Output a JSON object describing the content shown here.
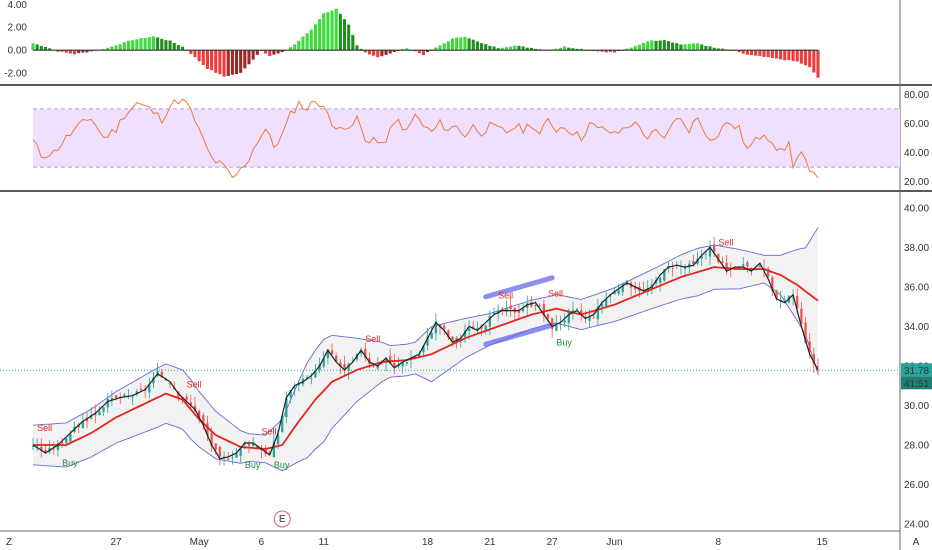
{
  "chart_data": [
    {
      "id": "macd-histogram",
      "type": "bar",
      "y_ticks": [
        "4.00",
        "2.00",
        "0.00",
        "-2.00"
      ],
      "ylim": [
        -2.6,
        4.2
      ],
      "colors": {
        "pos_strong": "#3ddc3d",
        "pos_weak": "#1f8f1f",
        "neg_strong": "#f03c3c",
        "neg_weak": "#9c2a2a",
        "zero_line": "#333333"
      },
      "knots": [
        [
          0,
          0.6
        ],
        [
          3,
          0.3
        ],
        [
          6,
          -0.1
        ],
        [
          10,
          -0.35
        ],
        [
          14,
          -0.1
        ],
        [
          18,
          0.2
        ],
        [
          24,
          0.9
        ],
        [
          29,
          1.2
        ],
        [
          33,
          0.8
        ],
        [
          36,
          0.3
        ],
        [
          38,
          -0.3
        ],
        [
          42,
          -1.6
        ],
        [
          46,
          -2.3
        ],
        [
          50,
          -2.0
        ],
        [
          53,
          -0.8
        ],
        [
          55,
          0.0
        ],
        [
          57,
          -0.5
        ],
        [
          60,
          -0.2
        ],
        [
          63,
          0.5
        ],
        [
          67,
          1.8
        ],
        [
          70,
          3.2
        ],
        [
          73,
          3.6
        ],
        [
          76,
          2.2
        ],
        [
          78,
          0.4
        ],
        [
          80,
          -0.2
        ],
        [
          83,
          -0.6
        ],
        [
          86,
          -0.3
        ],
        [
          90,
          0.2
        ],
        [
          94,
          -0.4
        ],
        [
          98,
          0.4
        ],
        [
          101,
          1.0
        ],
        [
          104,
          1.2
        ],
        [
          108,
          0.6
        ],
        [
          112,
          0.2
        ],
        [
          116,
          0.4
        ],
        [
          120,
          0.2
        ],
        [
          124,
          0.0
        ],
        [
          128,
          0.3
        ],
        [
          132,
          0.1
        ],
        [
          136,
          -0.1
        ],
        [
          140,
          -0.2
        ],
        [
          144,
          0.2
        ],
        [
          148,
          0.8
        ],
        [
          152,
          0.9
        ],
        [
          156,
          0.5
        ],
        [
          160,
          0.6
        ],
        [
          164,
          0.2
        ],
        [
          168,
          0.0
        ],
        [
          172,
          -0.4
        ],
        [
          176,
          -0.6
        ],
        [
          180,
          -0.8
        ],
        [
          184,
          -1.0
        ],
        [
          187,
          -1.5
        ],
        [
          189,
          -2.4
        ]
      ]
    },
    {
      "id": "rsi",
      "type": "line",
      "y_ticks": [
        "80.00",
        "60.00",
        "40.00",
        "20.00"
      ],
      "ylim": [
        17,
        83
      ],
      "band": [
        30,
        70
      ],
      "colors": {
        "line": "#f07a3a",
        "band_fill": "#efe0ff",
        "band_border": "#b89ad8"
      },
      "knots": [
        [
          0,
          48
        ],
        [
          2,
          38
        ],
        [
          5,
          40
        ],
        [
          8,
          50
        ],
        [
          11,
          58
        ],
        [
          14,
          64
        ],
        [
          17,
          50
        ],
        [
          20,
          56
        ],
        [
          22,
          66
        ],
        [
          25,
          74
        ],
        [
          28,
          70
        ],
        [
          31,
          63
        ],
        [
          33,
          72
        ],
        [
          35,
          76
        ],
        [
          37,
          74
        ],
        [
          39,
          62
        ],
        [
          41,
          48
        ],
        [
          43,
          36
        ],
        [
          46,
          30
        ],
        [
          48,
          22
        ],
        [
          50,
          28
        ],
        [
          52,
          36
        ],
        [
          54,
          48
        ],
        [
          56,
          56
        ],
        [
          58,
          44
        ],
        [
          60,
          52
        ],
        [
          62,
          66
        ],
        [
          64,
          74
        ],
        [
          66,
          70
        ],
        [
          68,
          76
        ],
        [
          70,
          72
        ],
        [
          72,
          58
        ],
        [
          74,
          60
        ],
        [
          76,
          54
        ],
        [
          78,
          64
        ],
        [
          80,
          48
        ],
        [
          82,
          50
        ],
        [
          84,
          44
        ],
        [
          86,
          55
        ],
        [
          88,
          62
        ],
        [
          90,
          54
        ],
        [
          92,
          66
        ],
        [
          94,
          58
        ],
        [
          96,
          54
        ],
        [
          98,
          60
        ],
        [
          100,
          56
        ],
        [
          102,
          58
        ],
        [
          104,
          52
        ],
        [
          106,
          58
        ],
        [
          108,
          54
        ],
        [
          110,
          58
        ],
        [
          112,
          56
        ],
        [
          114,
          54
        ],
        [
          116,
          58
        ],
        [
          118,
          56
        ],
        [
          120,
          60
        ],
        [
          122,
          52
        ],
        [
          124,
          62
        ],
        [
          126,
          56
        ],
        [
          128,
          58
        ],
        [
          130,
          54
        ],
        [
          132,
          50
        ],
        [
          134,
          60
        ],
        [
          136,
          56
        ],
        [
          138,
          56
        ],
        [
          140,
          52
        ],
        [
          142,
          56
        ],
        [
          144,
          60
        ],
        [
          146,
          58
        ],
        [
          148,
          50
        ],
        [
          150,
          54
        ],
        [
          152,
          48
        ],
        [
          154,
          62
        ],
        [
          156,
          62
        ],
        [
          158,
          56
        ],
        [
          160,
          64
        ],
        [
          162,
          54
        ],
        [
          164,
          48
        ],
        [
          166,
          58
        ],
        [
          168,
          60
        ],
        [
          170,
          56
        ],
        [
          172,
          42
        ],
        [
          174,
          48
        ],
        [
          176,
          54
        ],
        [
          178,
          48
        ],
        [
          180,
          40
        ],
        [
          182,
          46
        ],
        [
          183,
          32
        ],
        [
          185,
          40
        ],
        [
          187,
          26
        ],
        [
          189,
          21
        ]
      ]
    },
    {
      "id": "price",
      "type": "candlestick",
      "title": "",
      "y_ticks": [
        "40.00",
        "38.00",
        "36.00",
        "34.00",
        "32.00",
        "30.00",
        "28.00",
        "26.00",
        "24.00"
      ],
      "ylim": [
        23.8,
        40.6
      ],
      "x_ticks": [
        {
          "i": 20,
          "label": "27"
        },
        {
          "i": 40,
          "label": "May"
        },
        {
          "i": 55,
          "label": "6"
        },
        {
          "i": 70,
          "label": "11"
        },
        {
          "i": 95,
          "label": "18"
        },
        {
          "i": 110,
          "label": "21"
        },
        {
          "i": 125,
          "label": "27"
        },
        {
          "i": 140,
          "label": "Jun"
        },
        {
          "i": 165,
          "label": "8"
        },
        {
          "i": 190,
          "label": "15"
        }
      ],
      "x_range": [
        -2,
        206
      ],
      "last_price_label": "31.78",
      "countdown_label": "41:51",
      "earnings_label": "E",
      "earnings_index": 60,
      "corner_left_label": "Z",
      "corner_right_label": "A",
      "colors": {
        "up": "#26a69a",
        "down": "#ef5350",
        "price_line": "#222222",
        "ma": "#e3261e",
        "band_line": "#6a6ad8",
        "band_fill": "#f2f2f2",
        "last_line": "#26a69a",
        "highlight": "#7a7aee",
        "buy": "#1e8f3a",
        "sell": "#e3261e"
      },
      "close_knots": [
        [
          0,
          28.0
        ],
        [
          3,
          27.6
        ],
        [
          6,
          28.0
        ],
        [
          9,
          28.6
        ],
        [
          12,
          29.2
        ],
        [
          15,
          29.6
        ],
        [
          18,
          30.2
        ],
        [
          21,
          30.4
        ],
        [
          24,
          30.5
        ],
        [
          27,
          30.8
        ],
        [
          30,
          31.6
        ],
        [
          33,
          31.2
        ],
        [
          35,
          30.6
        ],
        [
          37,
          30.2
        ],
        [
          39,
          29.8
        ],
        [
          41,
          29.0
        ],
        [
          43,
          28.0
        ],
        [
          45,
          27.3
        ],
        [
          47,
          27.4
        ],
        [
          49,
          27.6
        ],
        [
          51,
          28.1
        ],
        [
          53,
          28.1
        ],
        [
          55,
          27.8
        ],
        [
          57,
          27.5
        ],
        [
          59,
          28.6
        ],
        [
          61,
          30.4
        ],
        [
          63,
          31.0
        ],
        [
          65,
          31.2
        ],
        [
          67,
          31.5
        ],
        [
          69,
          32.0
        ],
        [
          71,
          32.8
        ],
        [
          73,
          32.2
        ],
        [
          75,
          31.8
        ],
        [
          77,
          32.2
        ],
        [
          79,
          32.8
        ],
        [
          81,
          32.2
        ],
        [
          83,
          32.0
        ],
        [
          85,
          32.4
        ],
        [
          87,
          31.9
        ],
        [
          89,
          32.2
        ],
        [
          91,
          32.4
        ],
        [
          93,
          32.6
        ],
        [
          95,
          33.4
        ],
        [
          97,
          34.2
        ],
        [
          99,
          33.8
        ],
        [
          101,
          33.2
        ],
        [
          103,
          33.4
        ],
        [
          105,
          34.0
        ],
        [
          107,
          33.8
        ],
        [
          109,
          34.2
        ],
        [
          111,
          34.6
        ],
        [
          113,
          34.8
        ],
        [
          115,
          34.8
        ],
        [
          117,
          34.8
        ],
        [
          119,
          35.1
        ],
        [
          121,
          35.2
        ],
        [
          123,
          34.6
        ],
        [
          125,
          34.0
        ],
        [
          127,
          34.2
        ],
        [
          129,
          34.6
        ],
        [
          131,
          34.8
        ],
        [
          133,
          34.4
        ],
        [
          135,
          34.6
        ],
        [
          137,
          35.2
        ],
        [
          139,
          35.6
        ],
        [
          141,
          35.9
        ],
        [
          143,
          36.2
        ],
        [
          145,
          36.0
        ],
        [
          147,
          35.8
        ],
        [
          149,
          36.0
        ],
        [
          151,
          36.6
        ],
        [
          153,
          37.0
        ],
        [
          155,
          37.1
        ],
        [
          157,
          37.0
        ],
        [
          159,
          37.1
        ],
        [
          161,
          37.6
        ],
        [
          163,
          38.0
        ],
        [
          165,
          37.4
        ],
        [
          167,
          36.8
        ],
        [
          169,
          37.0
        ],
        [
          171,
          37.0
        ],
        [
          173,
          36.8
        ],
        [
          175,
          37.2
        ],
        [
          177,
          36.4
        ],
        [
          179,
          35.4
        ],
        [
          181,
          35.2
        ],
        [
          183,
          35.6
        ],
        [
          185,
          34.0
        ],
        [
          187,
          32.6
        ],
        [
          189,
          31.8
        ]
      ],
      "ma_knots": [
        [
          0,
          28.0
        ],
        [
          8,
          28.0
        ],
        [
          14,
          28.6
        ],
        [
          20,
          29.4
        ],
        [
          26,
          30.0
        ],
        [
          32,
          30.6
        ],
        [
          36,
          30.3
        ],
        [
          40,
          29.3
        ],
        [
          44,
          28.5
        ],
        [
          50,
          27.9
        ],
        [
          56,
          27.8
        ],
        [
          60,
          28.0
        ],
        [
          64,
          29.2
        ],
        [
          68,
          30.3
        ],
        [
          72,
          31.2
        ],
        [
          78,
          31.8
        ],
        [
          84,
          32.2
        ],
        [
          90,
          32.3
        ],
        [
          96,
          32.6
        ],
        [
          104,
          33.4
        ],
        [
          112,
          34.0
        ],
        [
          120,
          34.6
        ],
        [
          126,
          34.9
        ],
        [
          132,
          34.6
        ],
        [
          140,
          35.1
        ],
        [
          148,
          35.8
        ],
        [
          156,
          36.5
        ],
        [
          164,
          37.0
        ],
        [
          170,
          36.9
        ],
        [
          176,
          36.9
        ],
        [
          180,
          36.6
        ],
        [
          184,
          36.1
        ],
        [
          189,
          35.3
        ]
      ],
      "band_width_knots": [
        [
          0,
          1.0
        ],
        [
          20,
          1.3
        ],
        [
          30,
          1.5
        ],
        [
          38,
          1.5
        ],
        [
          44,
          1.2
        ],
        [
          52,
          0.7
        ],
        [
          56,
          0.7
        ],
        [
          60,
          1.3
        ],
        [
          66,
          2.4
        ],
        [
          70,
          2.6
        ],
        [
          78,
          1.6
        ],
        [
          86,
          0.8
        ],
        [
          92,
          0.8
        ],
        [
          96,
          1.4
        ],
        [
          104,
          1.0
        ],
        [
          110,
          0.8
        ],
        [
          124,
          0.7
        ],
        [
          136,
          0.8
        ],
        [
          150,
          1.0
        ],
        [
          160,
          1.2
        ],
        [
          170,
          1.0
        ],
        [
          176,
          0.7
        ],
        [
          180,
          1.0
        ],
        [
          186,
          2.2
        ],
        [
          189,
          3.7
        ]
      ],
      "highlights": [
        [
          109,
          125
        ],
        [
          109,
          125
        ]
      ],
      "highlight_levels": [
        [
          35.5,
          35.9,
          0.06
        ],
        [
          33.1,
          33.3,
          0.06
        ]
      ],
      "signals": [
        {
          "i": 1,
          "type": "sell",
          "label": "Sell"
        },
        {
          "i": 7,
          "type": "buy",
          "label": "Buy"
        },
        {
          "i": 37,
          "type": "sell",
          "label": "Sell"
        },
        {
          "i": 51,
          "type": "buy",
          "label": "Buy"
        },
        {
          "i": 55,
          "type": "sell",
          "label": "Sell"
        },
        {
          "i": 58,
          "type": "buy",
          "label": "Buy"
        },
        {
          "i": 80,
          "type": "sell",
          "label": "Sell"
        },
        {
          "i": 112,
          "type": "sell",
          "label": "Sell"
        },
        {
          "i": 124,
          "type": "sell",
          "label": "Sell"
        },
        {
          "i": 126,
          "type": "buy",
          "label": "Buy"
        },
        {
          "i": 165,
          "type": "sell",
          "label": "Sell"
        }
      ]
    }
  ]
}
